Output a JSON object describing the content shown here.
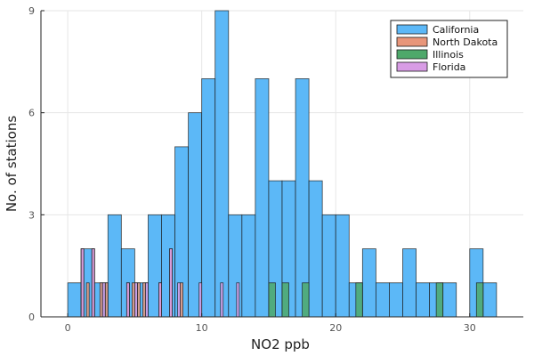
{
  "chart_data": {
    "type": "bar",
    "subtype": "histogram-overlay",
    "xlabel": "NO2 ppb",
    "ylabel": "No. of stations",
    "xlim": [
      -2,
      34
    ],
    "ylim": [
      0,
      9
    ],
    "xticks": [
      0,
      10,
      20,
      30
    ],
    "yticks": [
      0,
      3,
      6,
      9
    ],
    "grid": true,
    "legend_position": "top-right",
    "series": [
      {
        "name": "California",
        "color": "#5cb8f7",
        "bin_width": 1,
        "bins": [
          [
            0,
            1
          ],
          [
            1,
            2
          ],
          [
            2,
            1
          ],
          [
            3,
            3
          ],
          [
            4,
            2
          ],
          [
            5,
            1
          ],
          [
            6,
            3
          ],
          [
            7,
            3
          ],
          [
            8,
            5
          ],
          [
            9,
            6
          ],
          [
            10,
            7
          ],
          [
            11,
            9
          ],
          [
            12,
            3
          ],
          [
            13,
            3
          ],
          [
            14,
            7
          ],
          [
            15,
            4
          ],
          [
            16,
            4
          ],
          [
            17,
            7
          ],
          [
            18,
            4
          ],
          [
            19,
            3
          ],
          [
            20,
            3
          ],
          [
            21,
            1
          ],
          [
            22,
            2
          ],
          [
            23,
            1
          ],
          [
            24,
            1
          ],
          [
            25,
            2
          ],
          [
            26,
            1
          ],
          [
            27,
            1
          ],
          [
            28,
            1
          ],
          [
            30,
            2
          ],
          [
            31,
            1
          ]
        ]
      },
      {
        "name": "North Dakota",
        "color": "#e8967a",
        "bin_width": 0.2,
        "bins": [
          [
            1.0,
            2
          ],
          [
            1.4,
            1
          ],
          [
            1.8,
            2
          ],
          [
            2.4,
            1
          ],
          [
            2.8,
            1
          ],
          [
            4.4,
            1
          ],
          [
            4.8,
            1
          ],
          [
            5.2,
            1
          ],
          [
            5.6,
            1
          ],
          [
            6.8,
            1
          ],
          [
            7.6,
            2
          ],
          [
            8.4,
            1
          ]
        ]
      },
      {
        "name": "Illinois",
        "color": "#4ea86a",
        "bin_width": 0.5,
        "bins": [
          [
            15.0,
            1
          ],
          [
            16.0,
            1
          ],
          [
            17.5,
            1
          ],
          [
            21.5,
            1
          ],
          [
            27.5,
            1
          ],
          [
            30.5,
            1
          ]
        ]
      },
      {
        "name": "Florida",
        "color": "#d89ce5",
        "bin_width": 0.2,
        "bins": [
          [
            1.0,
            2
          ],
          [
            1.8,
            2
          ],
          [
            2.6,
            1
          ],
          [
            4.4,
            1
          ],
          [
            5.0,
            1
          ],
          [
            5.8,
            1
          ],
          [
            6.8,
            1
          ],
          [
            7.6,
            2
          ],
          [
            8.2,
            1
          ],
          [
            9.8,
            1
          ],
          [
            11.4,
            1
          ],
          [
            12.6,
            1
          ]
        ]
      }
    ]
  }
}
